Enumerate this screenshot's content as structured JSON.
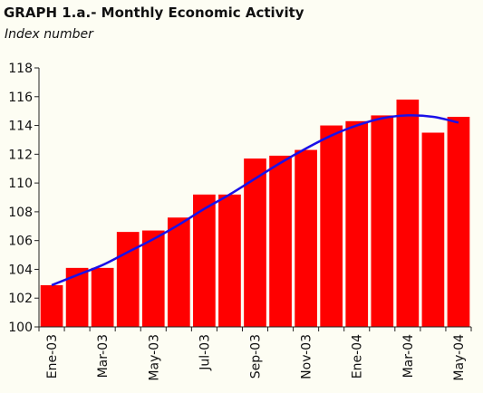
{
  "header": {
    "title": "GRAPH 1.a.- Monthly Economic Activity",
    "subtitle": "Index number"
  },
  "colors": {
    "bar": "#ff0000",
    "trend": "#1a10e8",
    "axis": "#222222",
    "background": "#fdfdf3"
  },
  "chart_data": {
    "type": "bar",
    "title": "GRAPH 1.a.- Monthly Economic Activity",
    "subtitle": "Index number",
    "xlabel": "",
    "ylabel": "",
    "ylim": [
      100,
      118
    ],
    "yticks": [
      100,
      102,
      104,
      106,
      108,
      110,
      112,
      114,
      116,
      118
    ],
    "grid": false,
    "legend": "none",
    "x_tick_labels": [
      "Ene-03",
      "Mar-03",
      "May-03",
      "Jul-03",
      "Sep-03",
      "Nov-03",
      "Ene-04",
      "Mar-04",
      "May-04"
    ],
    "categories": [
      "Ene-03",
      "Feb-03",
      "Mar-03",
      "Apr-03",
      "May-03",
      "Jun-03",
      "Jul-03",
      "Aug-03",
      "Sep-03",
      "Oct-03",
      "Nov-03",
      "Dec-03",
      "Ene-04",
      "Feb-04",
      "Mar-04",
      "Apr-04",
      "May-04"
    ],
    "series": [
      {
        "kind": "bar",
        "values": [
          102.9,
          104.1,
          104.1,
          106.6,
          106.7,
          107.6,
          109.2,
          109.2,
          111.7,
          111.9,
          112.3,
          114.0,
          114.3,
          114.7,
          115.8,
          113.5,
          114.6
        ]
      },
      {
        "kind": "line",
        "values": [
          102.9,
          103.6,
          104.3,
          105.2,
          106.1,
          107.1,
          108.2,
          109.2,
          110.3,
          111.4,
          112.4,
          113.3,
          114.0,
          114.5,
          114.7,
          114.6,
          114.2
        ]
      }
    ]
  }
}
